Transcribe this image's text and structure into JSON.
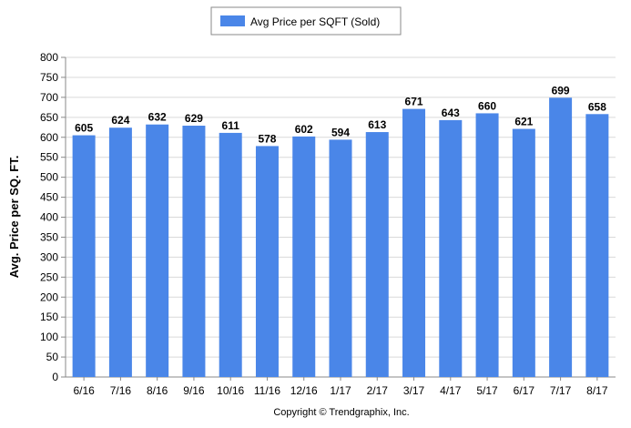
{
  "chart_data": {
    "type": "bar",
    "categories": [
      "6/16",
      "7/16",
      "8/16",
      "9/16",
      "10/16",
      "11/16",
      "12/16",
      "1/17",
      "2/17",
      "3/17",
      "4/17",
      "5/17",
      "6/17",
      "7/17",
      "8/17"
    ],
    "series": [
      {
        "name": "Avg Price per SQFT (Sold)",
        "values": [
          605,
          624,
          632,
          629,
          611,
          578,
          602,
          594,
          613,
          671,
          643,
          660,
          621,
          699,
          658
        ],
        "color": "#4a86e8"
      }
    ],
    "ylabel": "Avg. Price per SQ. FT.",
    "xlabel": "",
    "ylim": [
      0,
      800
    ],
    "yticks": [
      0,
      50,
      100,
      150,
      200,
      250,
      300,
      350,
      400,
      450,
      500,
      550,
      600,
      650,
      700,
      750,
      800
    ],
    "grid": true,
    "legend_position": "top-center",
    "data_labels": true
  },
  "footer": {
    "copyright": "Copyright © Trendgraphix, Inc."
  }
}
